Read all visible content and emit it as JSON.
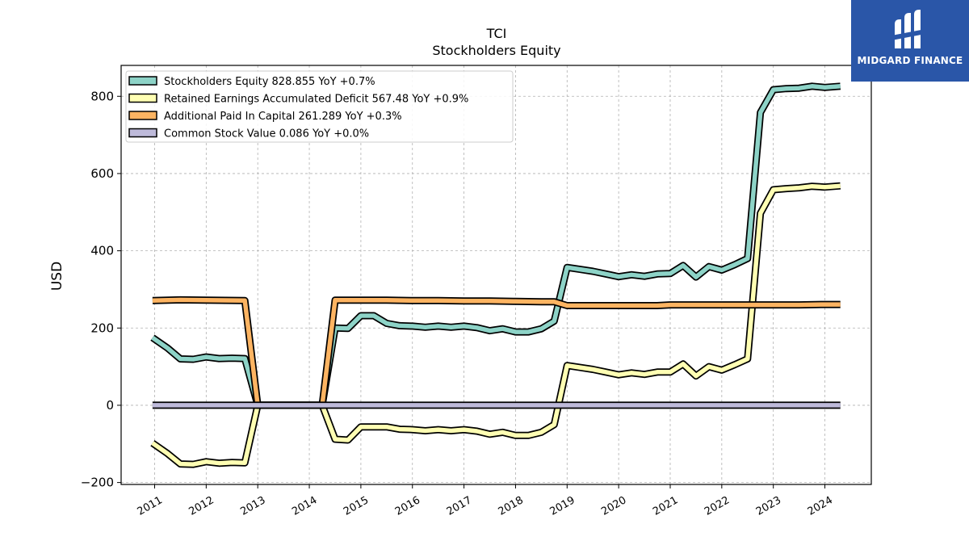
{
  "brand": {
    "name": "MIDGARD FINANCE",
    "color": "#2a56a8",
    "icon": "midgard-logo-icon"
  },
  "chart_data": {
    "type": "line",
    "title": "TCI",
    "subtitle": "Stockholders  Equity",
    "xlabel": "",
    "ylabel": "USD",
    "xlim": [
      2010.35,
      2024.9
    ],
    "ylim": [
      -205,
      880
    ],
    "yticks": [
      -200,
      0,
      200,
      400,
      600,
      800
    ],
    "yticklabels": [
      "−200",
      "0",
      "200",
      "400",
      "600",
      "800"
    ],
    "xticks": [
      2011,
      2012,
      2013,
      2014,
      2015,
      2016,
      2017,
      2018,
      2019,
      2020,
      2021,
      2022,
      2023,
      2024
    ],
    "xticklabels": [
      "2011",
      "2012",
      "2013",
      "2014",
      "2015",
      "2016",
      "2017",
      "2018",
      "2019",
      "2020",
      "2021",
      "2022",
      "2023",
      "2024"
    ],
    "grid": true,
    "legend_position": "top-left",
    "series": [
      {
        "name": "Stockholders Equity",
        "legend": "Stockholders Equity  828.855 YoY +0.7%",
        "color": "#8dd3c7",
        "x": [
          2010.96,
          2011.25,
          2011.5,
          2011.75,
          2012.0,
          2012.25,
          2012.5,
          2012.75,
          2013.0,
          2013.25,
          2013.5,
          2013.75,
          2014.0,
          2014.25,
          2014.5,
          2014.75,
          2015.0,
          2015.25,
          2015.5,
          2015.75,
          2016.0,
          2016.25,
          2016.5,
          2016.75,
          2017.0,
          2017.25,
          2017.5,
          2017.75,
          2018.0,
          2018.25,
          2018.5,
          2018.75,
          2019.0,
          2019.25,
          2019.5,
          2019.75,
          2020.0,
          2020.25,
          2020.5,
          2020.75,
          2021.0,
          2021.25,
          2021.5,
          2021.75,
          2022.0,
          2022.25,
          2022.5,
          2022.75,
          2023.0,
          2023.25,
          2023.5,
          2023.75,
          2024.0,
          2024.3
        ],
        "y": [
          175,
          148,
          120,
          119,
          125,
          121,
          122,
          121,
          0,
          0,
          0,
          0,
          0,
          0,
          200,
          199,
          232,
          232,
          212,
          206,
          205,
          202,
          205,
          202,
          205,
          201,
          193,
          198,
          190,
          190,
          198,
          218,
          357,
          352,
          347,
          340,
          333,
          338,
          334,
          340,
          341,
          362,
          332,
          359,
          350,
          364,
          380,
          758,
          817,
          820,
          821,
          826,
          823,
          826
        ]
      },
      {
        "name": "Retained Earnings Accumulated Deficit",
        "legend": "Retained Earnings Accumulated Deficit  567.48 YoY +0.9%",
        "color": "#ffffb3",
        "x": [
          2010.96,
          2011.25,
          2011.5,
          2011.75,
          2012.0,
          2012.25,
          2012.5,
          2012.75,
          2013.0,
          2013.25,
          2013.5,
          2013.75,
          2014.0,
          2014.25,
          2014.5,
          2014.75,
          2015.0,
          2015.25,
          2015.5,
          2015.75,
          2016.0,
          2016.25,
          2016.5,
          2016.75,
          2017.0,
          2017.25,
          2017.5,
          2017.75,
          2018.0,
          2018.25,
          2018.5,
          2018.75,
          2019.0,
          2019.25,
          2019.5,
          2019.75,
          2020.0,
          2020.25,
          2020.5,
          2020.75,
          2021.0,
          2021.25,
          2021.5,
          2021.75,
          2022.0,
          2022.25,
          2022.5,
          2022.75,
          2023.0,
          2023.25,
          2023.5,
          2023.75,
          2024.0,
          2024.3
        ],
        "y": [
          -98,
          -125,
          -152,
          -153,
          -146,
          -150,
          -148,
          -149,
          0,
          0,
          0,
          0,
          0,
          0,
          -88,
          -90,
          -56,
          -56,
          -56,
          -62,
          -63,
          -66,
          -63,
          -66,
          -63,
          -67,
          -75,
          -70,
          -78,
          -78,
          -70,
          -50,
          103,
          98,
          93,
          86,
          79,
          84,
          80,
          86,
          86,
          107,
          76,
          100,
          91,
          105,
          120,
          497,
          558,
          561,
          563,
          567,
          565,
          568
        ]
      },
      {
        "name": "Additional Paid In Capital",
        "legend": "Additional Paid In Capital  261.289 YoY +0.3%",
        "color": "#fdb462",
        "x": [
          2010.96,
          2011.5,
          2012.0,
          2012.75,
          2013.0,
          2013.25,
          2013.5,
          2013.75,
          2014.0,
          2014.25,
          2014.5,
          2015.0,
          2015.5,
          2016.0,
          2016.5,
          2017.0,
          2017.5,
          2018.0,
          2018.5,
          2018.75,
          2019.0,
          2019.5,
          2020.0,
          2020.5,
          2020.75,
          2021.0,
          2021.5,
          2022.0,
          2022.5,
          2023.0,
          2023.5,
          2024.0,
          2024.3
        ],
        "y": [
          271,
          273,
          272,
          271,
          0,
          0,
          0,
          0,
          0,
          0,
          272,
          272,
          272,
          271,
          271,
          270,
          270,
          269,
          268,
          268,
          258,
          258,
          258,
          258,
          258,
          260,
          260,
          260,
          260,
          260,
          260,
          261,
          261
        ]
      },
      {
        "name": "Common Stock Value",
        "legend": "Common Stock Value  0.086 YoY +0.0%",
        "color": "#bebada",
        "x": [
          2010.96,
          2024.3
        ],
        "y": [
          0.086,
          0.086
        ]
      }
    ]
  }
}
